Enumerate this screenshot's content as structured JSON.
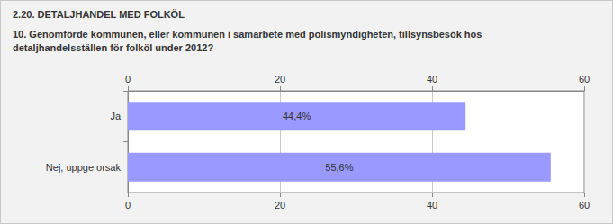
{
  "chart_data": {
    "type": "bar",
    "orientation": "horizontal",
    "title": "2.20. DETALJHANDEL MED FOLKÖL",
    "subtitle": "10. Genomförde kommunen, eller kommunen i samarbete med polismyndigheten, tillsynsbesök hos detaljhandelsställen för folköl under 2012?",
    "categories": [
      "Ja",
      "Nej, uppge orsak"
    ],
    "values": [
      44.4,
      55.6
    ],
    "value_labels": [
      "44,4%",
      "55,6%"
    ],
    "data_labels": true,
    "color": "#9999ff",
    "xlim": [
      0,
      60
    ],
    "xticks": [
      0,
      20,
      40,
      60
    ],
    "grid": true
  }
}
